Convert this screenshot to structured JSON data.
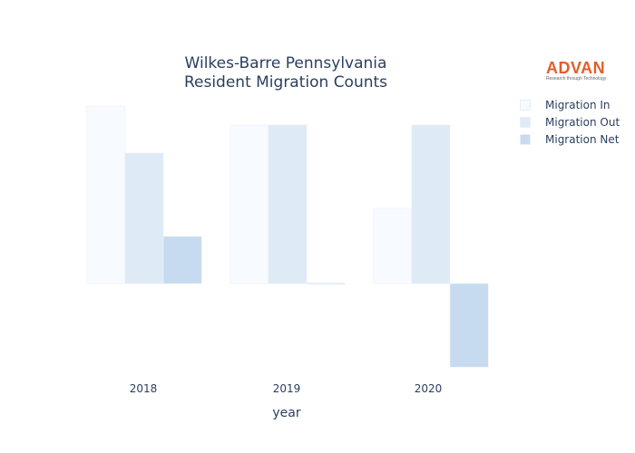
{
  "chart_data": {
    "type": "bar",
    "title": [
      "Wilkes-Barre Pennsylvania",
      "Resident Migration Counts"
    ],
    "xlabel": "year",
    "ylabel": "",
    "categories": [
      "2018",
      "2019",
      "2020"
    ],
    "series": [
      {
        "name": "Migration In",
        "values": [
          215,
          192,
          91
        ],
        "color": "#f7fbff"
      },
      {
        "name": "Migration Out",
        "values": [
          158,
          192,
          192
        ],
        "color": "#deebf7"
      },
      {
        "name": "Migration Net",
        "values": [
          57,
          0,
          -101
        ],
        "color": "#c6dbef"
      }
    ],
    "ylim": [
      -101,
      215
    ],
    "grid": false,
    "legend_position": "top-right",
    "logo": {
      "text": "ADVAN",
      "tagline": "Research through Technology"
    }
  }
}
